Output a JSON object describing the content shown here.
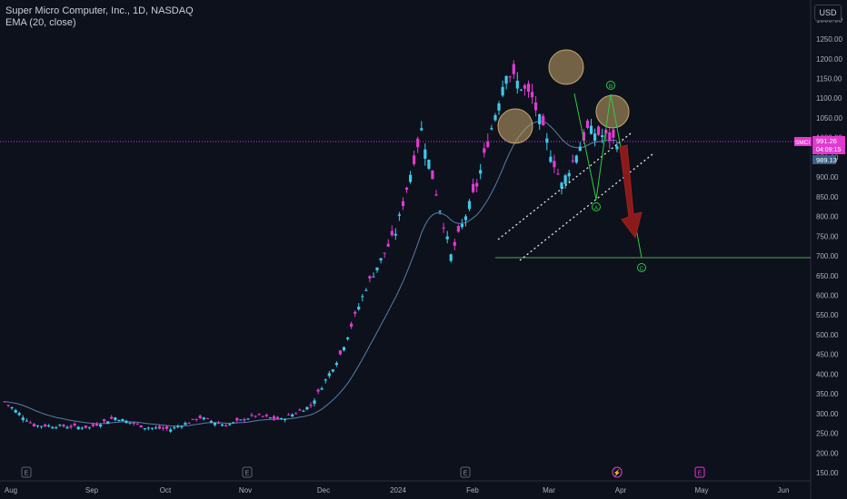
{
  "header": {
    "title": "Super Micro Computer, Inc., 1D, NASDAQ",
    "indicator": "EMA (20, close)"
  },
  "currency_button": "USD",
  "price_tags": {
    "symbol": "SMCI",
    "last_price": "991.26",
    "countdown": "04:09:15",
    "ema_value": "989.13"
  },
  "annotations": {
    "wave_a": "A",
    "wave_b": "B",
    "wave_c": "C"
  },
  "event_markers": [
    "E",
    "E",
    "E",
    "E",
    "E"
  ],
  "colors": {
    "background": "#0c111c",
    "up_candle": "#3fc9ea",
    "down_candle": "#e23ad0",
    "ema_line": "#5b7ea6",
    "target_line": "#4caf50",
    "price_line": "#d63ad0",
    "arrow": "#8b1a1a",
    "head_circles": "#c8a66a"
  },
  "chart_data": {
    "type": "candlestick",
    "title": "Super Micro Computer, Inc., 1D, NASDAQ",
    "ylim": [
      140,
      1310
    ],
    "y_ticks": [
      150,
      200,
      250,
      300,
      350,
      400,
      450,
      500,
      550,
      600,
      650,
      700,
      750,
      800,
      850,
      900,
      950,
      1000,
      1050,
      1100,
      1150,
      1200,
      1250,
      1300
    ],
    "x_ticks": [
      "Aug",
      "Sep",
      "Oct",
      "Nov",
      "Dec",
      "2024",
      "Feb",
      "Mar",
      "Apr",
      "May",
      "Jun"
    ],
    "approx_close_series": [
      {
        "date": "2023-08",
        "close": 330
      },
      {
        "date": "2023-08-15",
        "close": 270
      },
      {
        "date": "2023-09",
        "close": 268
      },
      {
        "date": "2023-09-15",
        "close": 265
      },
      {
        "date": "2023-10",
        "close": 290
      },
      {
        "date": "2023-10-15",
        "close": 265
      },
      {
        "date": "2023-11",
        "close": 260
      },
      {
        "date": "2023-11-15",
        "close": 290
      },
      {
        "date": "2023-12",
        "close": 270
      },
      {
        "date": "2023-12-15",
        "close": 295
      },
      {
        "date": "2024-01",
        "close": 285
      },
      {
        "date": "2024-01-15",
        "close": 320
      },
      {
        "date": "2024-01-25",
        "close": 450
      },
      {
        "date": "2024-02-01",
        "close": 620
      },
      {
        "date": "2024-02-08",
        "close": 760
      },
      {
        "date": "2024-02-15",
        "close": 1020
      },
      {
        "date": "2024-02-21",
        "close": 700
      },
      {
        "date": "2024-02-29",
        "close": 880
      },
      {
        "date": "2024-03-08",
        "close": 1170
      },
      {
        "date": "2024-03-13",
        "close": 1100
      },
      {
        "date": "2024-03-19",
        "close": 880
      },
      {
        "date": "2024-03-26",
        "close": 1020
      },
      {
        "date": "2024-03-28",
        "close": 991.26
      }
    ],
    "last_price": 991.26,
    "ema20_last": 989.13,
    "target_level": 700,
    "legend": "EMA (20, close)"
  }
}
